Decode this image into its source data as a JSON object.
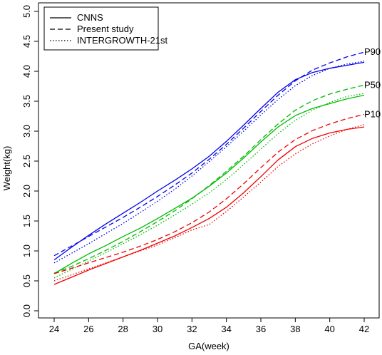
{
  "chart_data": {
    "type": "line",
    "xlabel": "GA(week)",
    "ylabel": "Weight(kg)",
    "xlim": [
      24,
      42
    ],
    "ylim": [
      0,
      5
    ],
    "x_ticks": [
      "24",
      "26",
      "28",
      "30",
      "32",
      "34",
      "36",
      "38",
      "40",
      "42"
    ],
    "y_ticks": [
      "0.0",
      "0.5",
      "1.0",
      "1.5",
      "2.0",
      "2.5",
      "3.0",
      "3.5",
      "4.0",
      "4.5",
      "5.0"
    ],
    "legend": {
      "position": "top-left",
      "entries": [
        {
          "label": "CNNS",
          "dash": "solid"
        },
        {
          "label": "Present study",
          "dash": "dashed"
        },
        {
          "label": "INTERGROWTH-21st",
          "dash": "dotted"
        }
      ]
    },
    "percentile_labels": [
      {
        "text": "P90",
        "x": 42,
        "y": 4.32
      },
      {
        "text": "P50",
        "x": 42,
        "y": 3.77
      },
      {
        "text": "P10",
        "x": 42,
        "y": 3.28
      }
    ],
    "x": [
      24,
      25,
      26,
      27,
      28,
      29,
      30,
      31,
      32,
      33,
      34,
      35,
      36,
      37,
      38,
      39,
      40,
      41,
      42
    ],
    "series": [
      {
        "percentile": "P90",
        "dash": "solid",
        "color": "#0000ee",
        "values": [
          0.85,
          1.06,
          1.26,
          1.45,
          1.63,
          1.81,
          2.0,
          2.18,
          2.37,
          2.58,
          2.83,
          3.1,
          3.38,
          3.65,
          3.86,
          3.98,
          4.05,
          4.1,
          4.15
        ]
      },
      {
        "percentile": "P90",
        "dash": "dashed",
        "color": "#0000ee",
        "values": [
          0.92,
          1.08,
          1.24,
          1.4,
          1.56,
          1.73,
          1.91,
          2.1,
          2.3,
          2.53,
          2.78,
          3.05,
          3.33,
          3.6,
          3.84,
          4.02,
          4.14,
          4.24,
          4.32
        ]
      },
      {
        "percentile": "P90",
        "dash": "dotted",
        "color": "#0000ee",
        "values": [
          0.8,
          0.96,
          1.12,
          1.29,
          1.46,
          1.64,
          1.83,
          2.03,
          2.25,
          2.49,
          2.74,
          3.0,
          3.27,
          3.53,
          3.76,
          3.93,
          4.05,
          4.12,
          4.17
        ]
      },
      {
        "percentile": "P50",
        "dash": "solid",
        "color": "#00bb00",
        "values": [
          0.62,
          0.79,
          0.95,
          1.09,
          1.24,
          1.38,
          1.54,
          1.71,
          1.88,
          2.08,
          2.3,
          2.55,
          2.82,
          3.07,
          3.26,
          3.38,
          3.46,
          3.54,
          3.6
        ]
      },
      {
        "percentile": "P50",
        "dash": "dashed",
        "color": "#00bb00",
        "values": [
          0.63,
          0.74,
          0.87,
          1.01,
          1.16,
          1.32,
          1.49,
          1.67,
          1.87,
          2.09,
          2.33,
          2.58,
          2.86,
          3.12,
          3.35,
          3.51,
          3.62,
          3.7,
          3.77
        ]
      },
      {
        "percentile": "P50",
        "dash": "dotted",
        "color": "#00bb00",
        "values": [
          0.55,
          0.69,
          0.83,
          0.97,
          1.12,
          1.27,
          1.43,
          1.6,
          1.78,
          1.97,
          2.19,
          2.44,
          2.7,
          2.96,
          3.18,
          3.35,
          3.48,
          3.58,
          3.63
        ]
      },
      {
        "percentile": "P10",
        "dash": "solid",
        "color": "#ee0000",
        "values": [
          0.44,
          0.56,
          0.68,
          0.79,
          0.9,
          1.01,
          1.13,
          1.25,
          1.39,
          1.54,
          1.73,
          1.97,
          2.24,
          2.52,
          2.74,
          2.88,
          2.97,
          3.03,
          3.07
        ]
      },
      {
        "percentile": "P10",
        "dash": "dashed",
        "color": "#ee0000",
        "values": [
          0.62,
          0.71,
          0.8,
          0.89,
          0.98,
          1.08,
          1.19,
          1.32,
          1.47,
          1.65,
          1.87,
          2.12,
          2.39,
          2.65,
          2.86,
          3.01,
          3.12,
          3.21,
          3.28
        ]
      },
      {
        "percentile": "P10",
        "dash": "dotted",
        "color": "#ee0000",
        "values": [
          0.5,
          0.6,
          0.7,
          0.8,
          0.9,
          1.0,
          1.1,
          1.22,
          1.35,
          1.44,
          1.66,
          1.9,
          2.15,
          2.41,
          2.62,
          2.79,
          2.92,
          3.03,
          3.11
        ]
      }
    ]
  }
}
